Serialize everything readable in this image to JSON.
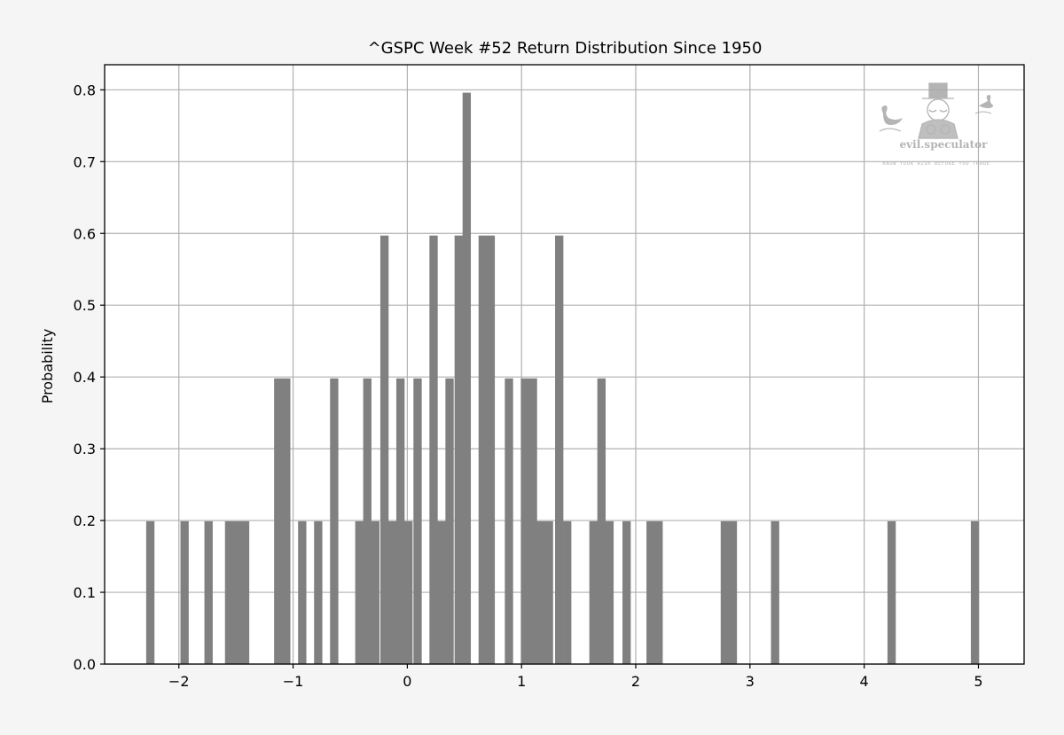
{
  "chart_data": {
    "type": "bar",
    "title": "^GSPC Week #52 Return Distribution Since 1950",
    "xlabel": "",
    "ylabel": "Probability",
    "xlim": [
      -2.65,
      5.4
    ],
    "ylim": [
      0.0,
      0.835
    ],
    "x_ticks": [
      -2,
      -1,
      0,
      1,
      2,
      3,
      4,
      5
    ],
    "x_tick_labels": [
      "−2",
      "−1",
      "0",
      "1",
      "2",
      "3",
      "4",
      "5"
    ],
    "y_ticks": [
      0.0,
      0.1,
      0.2,
      0.3,
      0.4,
      0.5,
      0.6,
      0.7,
      0.8
    ],
    "y_tick_labels": [
      "0.0",
      "0.1",
      "0.2",
      "0.3",
      "0.4",
      "0.5",
      "0.6",
      "0.7",
      "0.8"
    ],
    "grid": true,
    "bin_width": 0.0725,
    "bar_color": "#808080",
    "bins": [
      {
        "x": -2.25,
        "y": 0.199
      },
      {
        "x": -1.95,
        "y": 0.199
      },
      {
        "x": -1.74,
        "y": 0.199
      },
      {
        "x": -1.56,
        "y": 0.199
      },
      {
        "x": -1.49,
        "y": 0.199
      },
      {
        "x": -1.42,
        "y": 0.199
      },
      {
        "x": -1.13,
        "y": 0.398
      },
      {
        "x": -1.06,
        "y": 0.398
      },
      {
        "x": -0.92,
        "y": 0.199
      },
      {
        "x": -0.78,
        "y": 0.199
      },
      {
        "x": -0.64,
        "y": 0.398
      },
      {
        "x": -0.42,
        "y": 0.199
      },
      {
        "x": -0.35,
        "y": 0.398
      },
      {
        "x": -0.28,
        "y": 0.199
      },
      {
        "x": -0.2,
        "y": 0.597
      },
      {
        "x": -0.13,
        "y": 0.199
      },
      {
        "x": -0.06,
        "y": 0.398
      },
      {
        "x": 0.01,
        "y": 0.199
      },
      {
        "x": 0.09,
        "y": 0.398
      },
      {
        "x": 0.23,
        "y": 0.597
      },
      {
        "x": 0.3,
        "y": 0.199
      },
      {
        "x": 0.37,
        "y": 0.398
      },
      {
        "x": 0.45,
        "y": 0.597
      },
      {
        "x": 0.52,
        "y": 0.796
      },
      {
        "x": 0.66,
        "y": 0.597
      },
      {
        "x": 0.73,
        "y": 0.597
      },
      {
        "x": 0.89,
        "y": 0.398
      },
      {
        "x": 1.03,
        "y": 0.398
      },
      {
        "x": 1.1,
        "y": 0.398
      },
      {
        "x": 1.17,
        "y": 0.199
      },
      {
        "x": 1.24,
        "y": 0.199
      },
      {
        "x": 1.33,
        "y": 0.597
      },
      {
        "x": 1.4,
        "y": 0.199
      },
      {
        "x": 1.63,
        "y": 0.199
      },
      {
        "x": 1.7,
        "y": 0.398
      },
      {
        "x": 1.77,
        "y": 0.199
      },
      {
        "x": 1.92,
        "y": 0.199
      },
      {
        "x": 2.13,
        "y": 0.199
      },
      {
        "x": 2.2,
        "y": 0.199
      },
      {
        "x": 2.78,
        "y": 0.199
      },
      {
        "x": 2.85,
        "y": 0.199
      },
      {
        "x": 3.22,
        "y": 0.199
      },
      {
        "x": 4.24,
        "y": 0.199
      },
      {
        "x": 4.97,
        "y": 0.199
      }
    ]
  },
  "watermark": {
    "brand": "evil.speculator",
    "tagline": "KNOW YOUR RISK BEFORE YOU TRADE",
    "color": "#a8a8a8"
  }
}
